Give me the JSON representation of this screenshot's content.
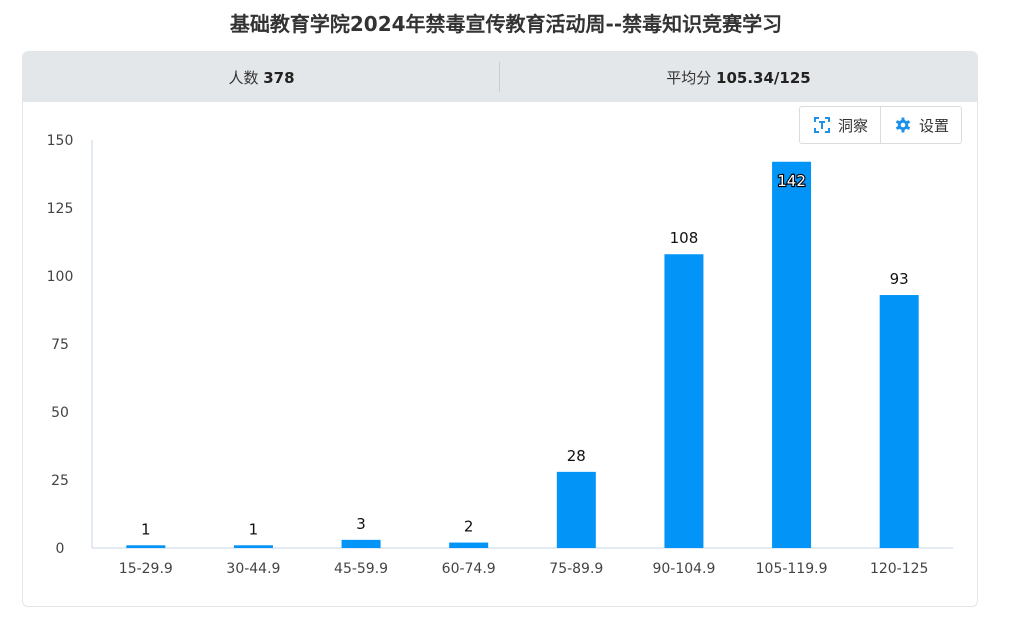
{
  "page": {
    "title": "基础教育学院2024年禁毒宣传教育活动周--禁毒知识竞赛学习"
  },
  "stats": {
    "participants_label": "人数",
    "participants_value": "378",
    "average_label": "平均分",
    "average_value": "105.34/125"
  },
  "toolbar": {
    "insight_label": "洞察",
    "insight_icon": "insight-icon",
    "settings_label": "设置",
    "settings_icon": "gear-icon"
  },
  "colors": {
    "bar": "#0394f7",
    "axis": "#c8d6e5",
    "header_bg": "#e4e7e9",
    "icon_blue": "#1e90e8"
  },
  "chart_data": {
    "type": "bar",
    "categories": [
      "15-29.9",
      "30-44.9",
      "45-59.9",
      "60-74.9",
      "75-89.9",
      "90-104.9",
      "105-119.9",
      "120-125"
    ],
    "values": [
      1,
      1,
      3,
      2,
      28,
      108,
      142,
      93
    ],
    "data_labels": [
      "1",
      "1",
      "3",
      "2",
      "28",
      "108",
      "142",
      "93"
    ],
    "y_ticks": [
      0,
      25,
      50,
      75,
      100,
      125,
      150
    ],
    "ylim": [
      0,
      150
    ],
    "title": "",
    "xlabel": "",
    "ylabel": "",
    "grid": false
  }
}
